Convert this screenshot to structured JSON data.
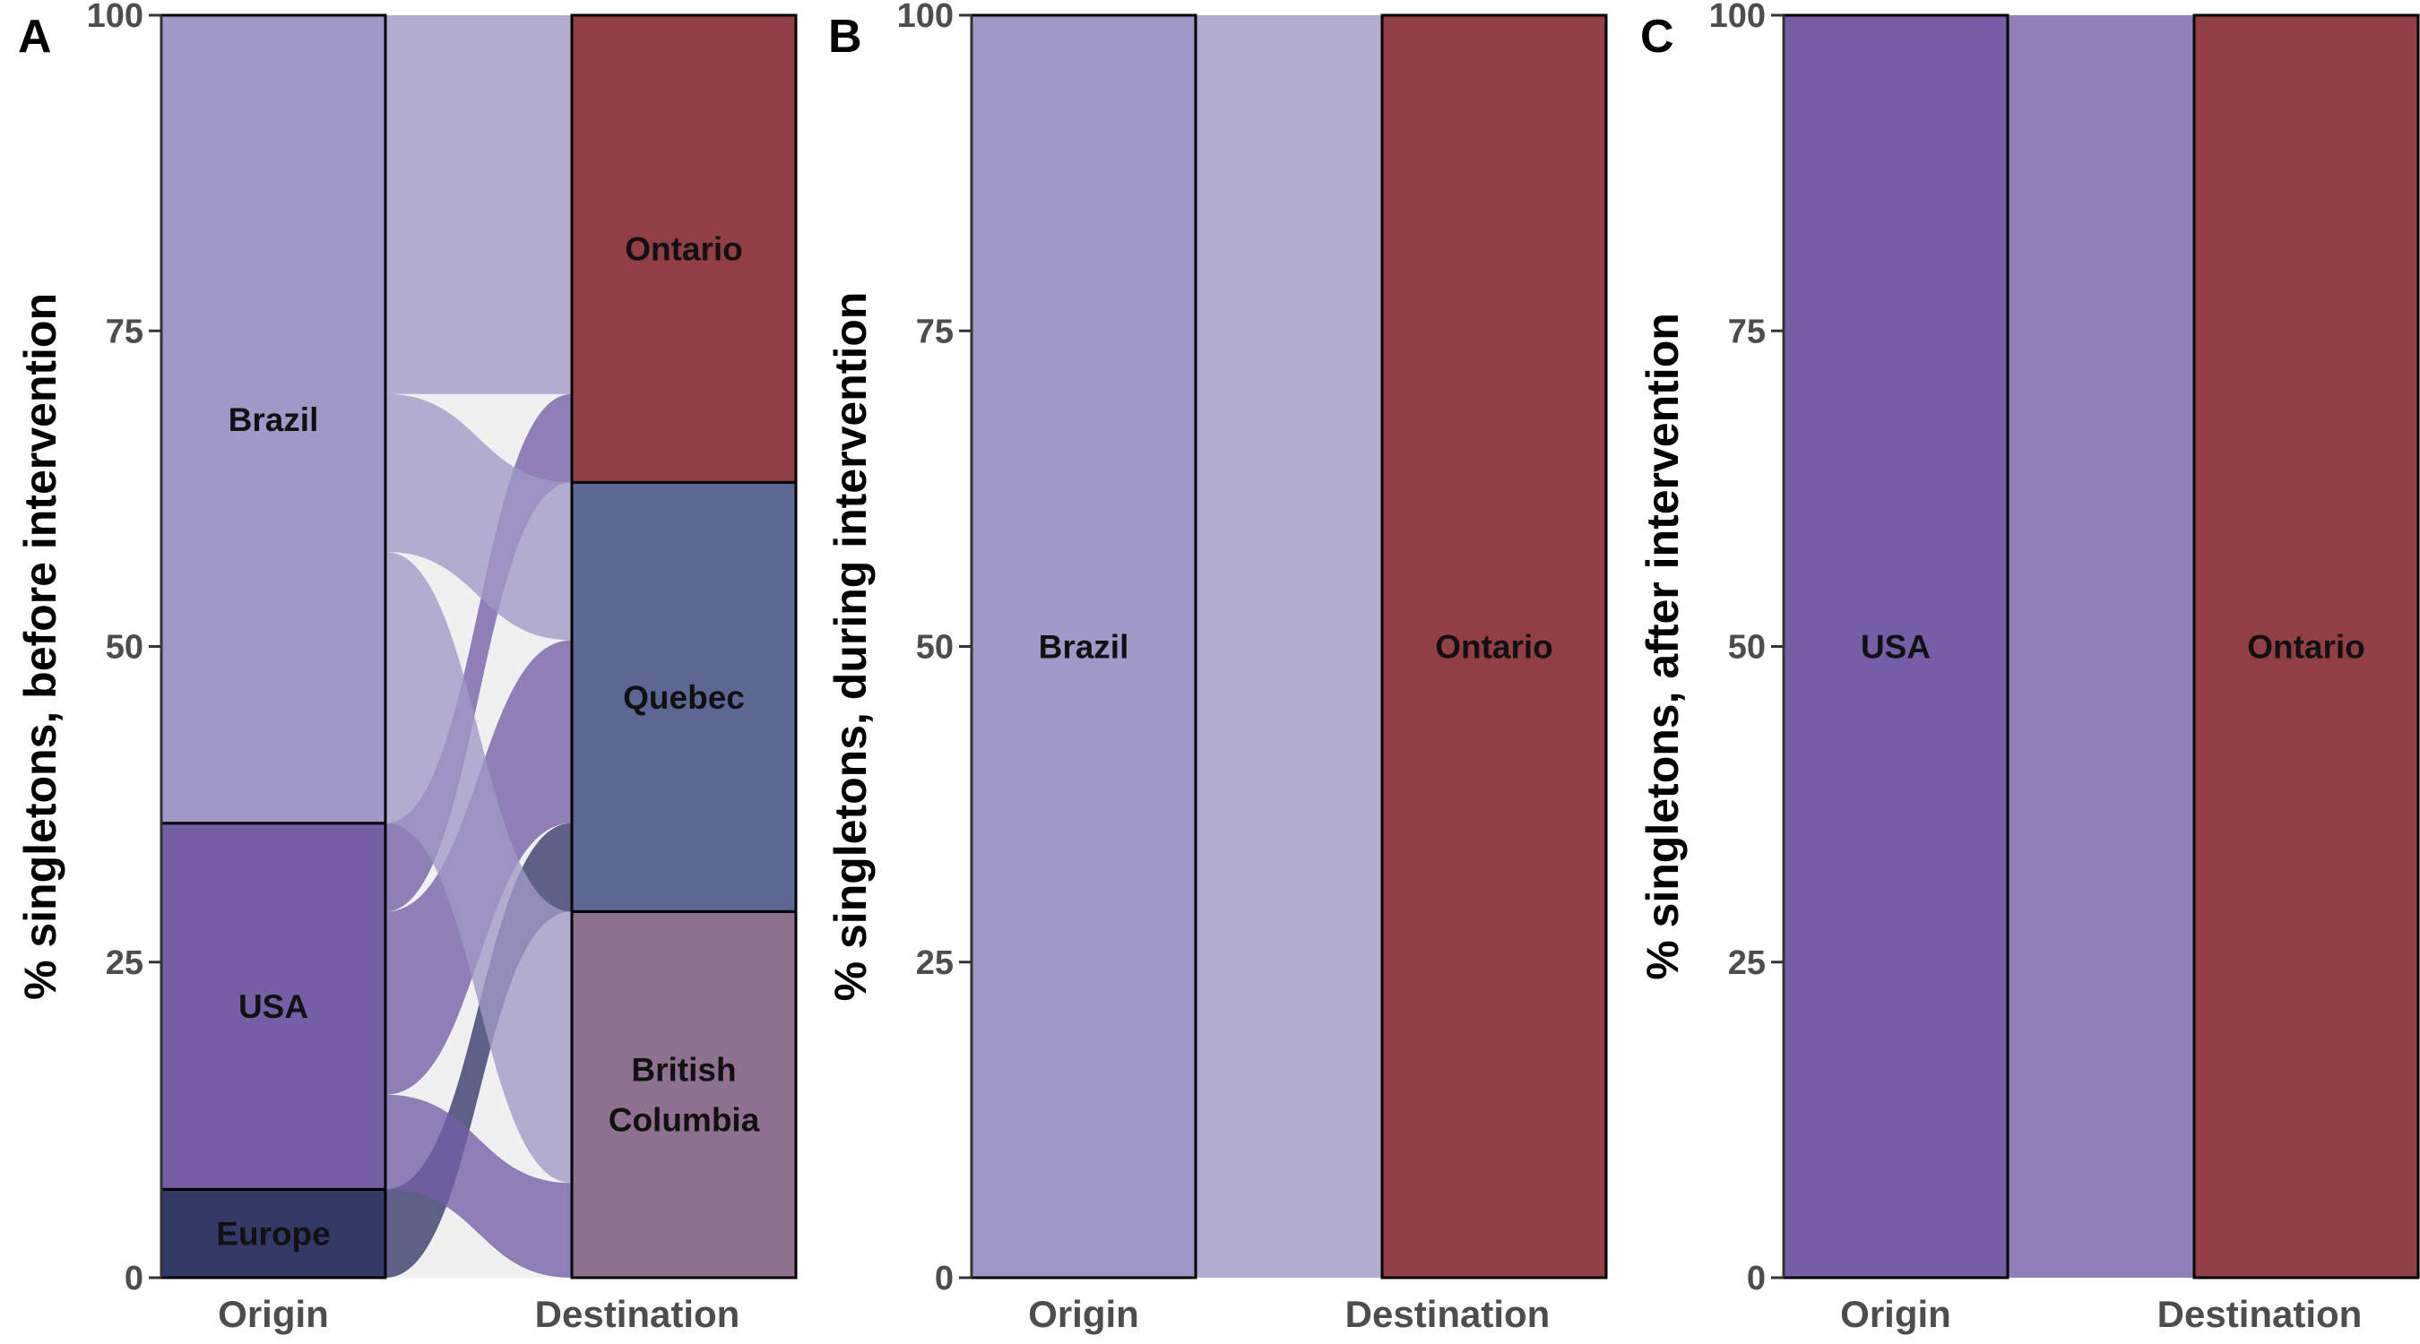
{
  "chart_data": [
    {
      "type": "alluvial",
      "panel": "A",
      "ylabel": "% singletons, before intervention",
      "ylim": [
        0,
        100
      ],
      "yticks": [
        0,
        25,
        50,
        75,
        100
      ],
      "axes": [
        "Origin",
        "Destination"
      ],
      "origin": [
        {
          "name": "Europe",
          "value": 7,
          "color": "#333966"
        },
        {
          "name": "USA",
          "value": 29,
          "color": "#755ea6"
        },
        {
          "name": "Brazil",
          "value": 64,
          "color": "#a098c7"
        }
      ],
      "destination": [
        {
          "name": "British Columbia",
          "lines": [
            "British",
            "Columbia"
          ],
          "value": 29,
          "color": "#8e718e"
        },
        {
          "name": "Quebec",
          "value": 34,
          "color": "#5c6893"
        },
        {
          "name": "Ontario",
          "value": 37,
          "color": "#913f45"
        }
      ],
      "flows": [
        {
          "from": "Europe",
          "to": "Quebec",
          "value": 7
        },
        {
          "from": "USA",
          "to": "British Columbia",
          "value": 7.5
        },
        {
          "from": "USA",
          "to": "Quebec",
          "value": 14.5
        },
        {
          "from": "USA",
          "to": "Ontario",
          "value": 7
        },
        {
          "from": "Brazil",
          "to": "British Columbia",
          "value": 21.5
        },
        {
          "from": "Brazil",
          "to": "Quebec",
          "value": 12.5
        },
        {
          "from": "Brazil",
          "to": "Ontario",
          "value": 30
        }
      ]
    },
    {
      "type": "alluvial",
      "panel": "B",
      "ylabel": "% singletons, during intervention",
      "ylim": [
        0,
        100
      ],
      "yticks": [
        0,
        25,
        50,
        75,
        100
      ],
      "axes": [
        "Origin",
        "Destination"
      ],
      "origin": [
        {
          "name": "Brazil",
          "value": 100,
          "color": "#a098c7"
        }
      ],
      "destination": [
        {
          "name": "Ontario",
          "value": 100,
          "color": "#913f45"
        }
      ],
      "flows": [
        {
          "from": "Brazil",
          "to": "Ontario",
          "value": 100
        }
      ]
    },
    {
      "type": "alluvial",
      "panel": "C",
      "ylabel": "% singletons, after intervention",
      "ylim": [
        0,
        100
      ],
      "yticks": [
        0,
        25,
        50,
        75,
        100
      ],
      "axes": [
        "Origin",
        "Destination"
      ],
      "origin": [
        {
          "name": "USA",
          "value": 100,
          "color": "#755ea6"
        }
      ],
      "destination": [
        {
          "name": "Ontario",
          "value": 100,
          "color": "#913f45"
        }
      ],
      "flows": [
        {
          "from": "USA",
          "to": "Ontario",
          "value": 100
        }
      ]
    }
  ]
}
